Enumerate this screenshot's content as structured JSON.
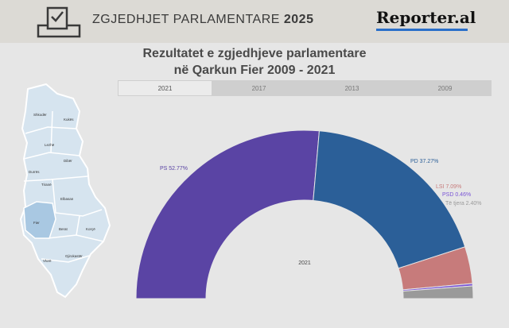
{
  "header": {
    "title_prefix": "ZGJEDHJET PARLAMENTARE",
    "title_year": "2025",
    "logo": "Reporter.al",
    "icon": "ballot-box-icon"
  },
  "title_line1": "Rezultatet e zgjedhjeve parlamentare",
  "title_line2": "në Qarkun Fier 2009 - 2021",
  "tabs": [
    {
      "label": "2021",
      "active": true
    },
    {
      "label": "2017",
      "active": false
    },
    {
      "label": "2013",
      "active": false
    },
    {
      "label": "2009",
      "active": false
    }
  ],
  "map": {
    "regions": [
      "Shkodër",
      "Kukës",
      "Lezhë",
      "Dibër",
      "Durrës",
      "Tiranë",
      "Elbasan",
      "Fier",
      "Berat",
      "Korçë",
      "Gjirokastër",
      "Vlorë"
    ],
    "highlighted": "Fier",
    "highlight_color": "#a9c8e2",
    "base_color": "#d6e4ef"
  },
  "chart_data": {
    "type": "pie",
    "shape": "semicircle-donut",
    "center_label": "2021",
    "slices": [
      {
        "label": "PS",
        "value": 52.77,
        "text": "PS 52.77%",
        "color": "#5a44a4"
      },
      {
        "label": "PD",
        "value": 37.27,
        "text": "PD 37.27%",
        "color": "#2b5f98"
      },
      {
        "label": "LSI",
        "value": 7.09,
        "text": "LSI 7.09%",
        "color": "#c77b7b"
      },
      {
        "label": "PSD",
        "value": 0.46,
        "text": "PSD 0.46%",
        "color": "#7a55d6"
      },
      {
        "label": "Të tjera",
        "value": 2.4,
        "text": "Të tjera 2.40%",
        "color": "#9a9a9a"
      }
    ]
  }
}
